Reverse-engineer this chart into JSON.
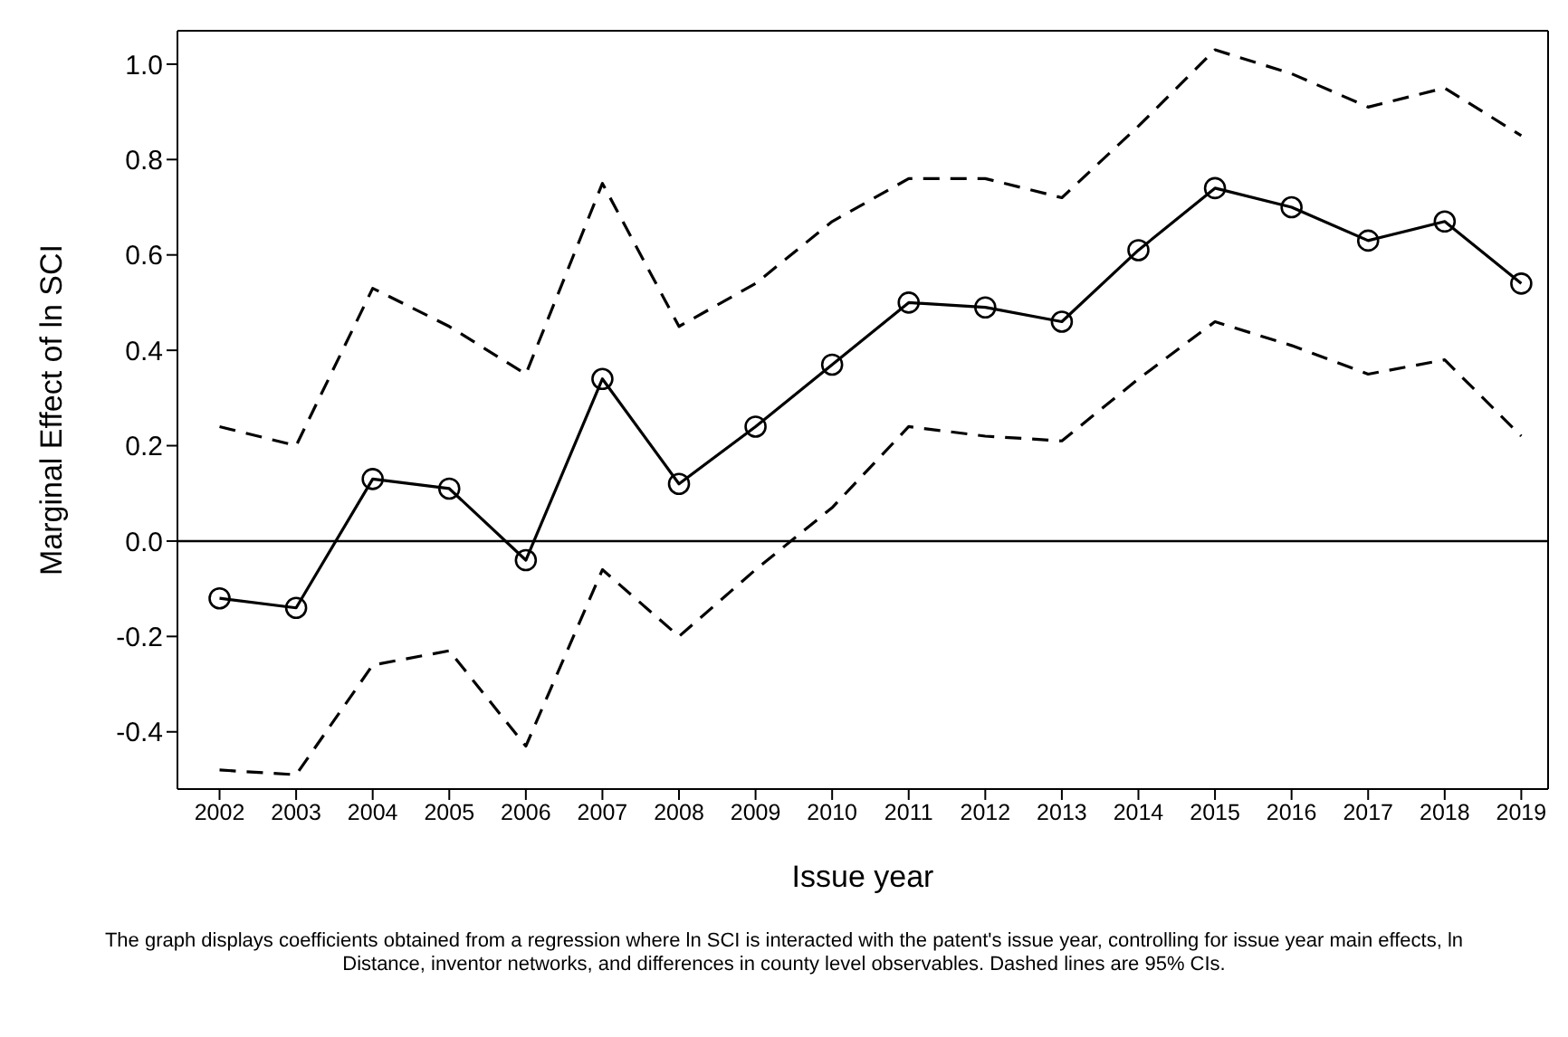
{
  "chart_data": {
    "type": "line",
    "xlabel": "Issue year",
    "ylabel": "Marginal Effect of ln SCI",
    "categories": [
      "2002",
      "2003",
      "2004",
      "2005",
      "2006",
      "2007",
      "2008",
      "2009",
      "2010",
      "2011",
      "2012",
      "2013",
      "2014",
      "2015",
      "2016",
      "2017",
      "2018",
      "2019"
    ],
    "series": [
      {
        "color": "#000000",
        "marker": "circle",
        "line_style": "solid",
        "values": [
          -0.12,
          -0.14,
          0.13,
          0.11,
          -0.04,
          0.34,
          0.12,
          0.24,
          0.37,
          0.5,
          0.49,
          0.46,
          0.61,
          0.74,
          0.7,
          0.63,
          0.67,
          0.54
        ]
      },
      {
        "color": "#000000",
        "marker": "none",
        "line_style": "dashed",
        "values": [
          0.24,
          0.2,
          0.53,
          0.45,
          0.35,
          0.75,
          0.45,
          0.54,
          0.67,
          0.76,
          0.76,
          0.72,
          0.87,
          1.03,
          0.98,
          0.91,
          0.95,
          0.85
        ]
      },
      {
        "color": "#000000",
        "marker": "none",
        "line_style": "dashed",
        "values": [
          -0.48,
          -0.49,
          -0.26,
          -0.23,
          -0.43,
          -0.06,
          -0.2,
          -0.06,
          0.07,
          0.24,
          0.22,
          0.21,
          0.34,
          0.46,
          0.41,
          0.35,
          0.38,
          0.22
        ]
      }
    ],
    "ylim": [
      -0.52,
      1.07
    ],
    "yticks": [
      -0.4,
      -0.2,
      {
        "value": 0,
        "label": "0.0"
      },
      0.2,
      0.4,
      0.6,
      0.8,
      {
        "value": 1,
        "label": "1.0"
      }
    ],
    "ref_lines": [
      {
        "axis": "y",
        "value": 0,
        "color": "#000000"
      }
    ],
    "grid": false,
    "legend": false,
    "annotations": [
      "The graph displays coefficients obtained from a regression where ln SCI is interacted with the patent's issue year, controlling for issue year main effects, ln Distance, inventor networks, and differences in county level observables. Dashed lines are 95% CIs."
    ]
  }
}
